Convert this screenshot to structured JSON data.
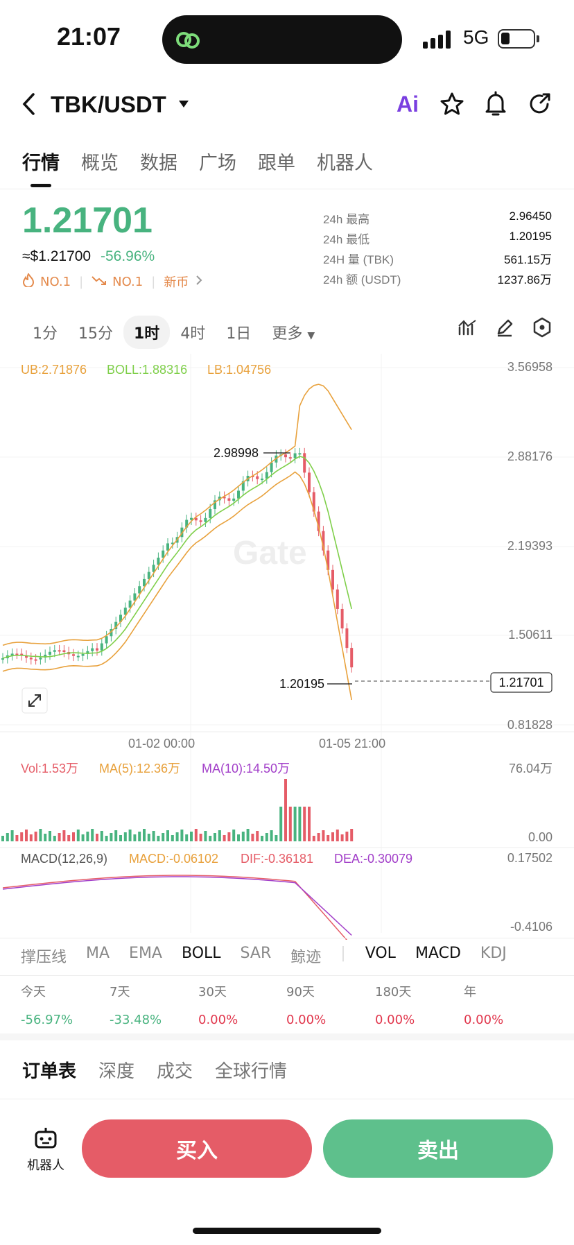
{
  "status_bar": {
    "time": "21:07",
    "network": "5G"
  },
  "header": {
    "pair": "TBK/USDT",
    "ai_label": "Ai"
  },
  "tabs": [
    {
      "label": "行情"
    },
    {
      "label": "概览"
    },
    {
      "label": "数据"
    },
    {
      "label": "广场"
    },
    {
      "label": "跟单"
    },
    {
      "label": "机器人"
    }
  ],
  "price": {
    "last": "1.21701",
    "usd": "≈$1.21700",
    "change": "-56.96%",
    "badge1": "NO.1",
    "badge2": "NO.1",
    "badge3": "新币"
  },
  "stats": [
    {
      "label": "24h  最高",
      "value": "2.96450"
    },
    {
      "label": "24h  最低",
      "value": "1.20195"
    },
    {
      "label": "24H  量 (TBK)",
      "value": "561.15万"
    },
    {
      "label": "24h  额 (USDT)",
      "value": "1237.86万"
    }
  ],
  "intervals": [
    "1分",
    "15分",
    "1时",
    "4时",
    "1日",
    "更多"
  ],
  "chart_labels": {
    "ub": "UB:2.71876",
    "boll": "BOLL:1.88316",
    "lb": "LB:1.04756",
    "y_ticks": [
      "3.56958",
      "2.88176",
      "2.19393",
      "1.50611",
      "0.81828"
    ],
    "high_mark": "2.98998",
    "low_mark": "1.20195",
    "last_price": "1.21701",
    "x_ticks": [
      "01-02 00:00",
      "01-05 21:00"
    ],
    "vol": "Vol:1.53万",
    "ma5": "MA(5):12.36万",
    "ma10": "MA(10):14.50万",
    "vol_max": "76.04万",
    "vol_min": "0.00",
    "macd_title": "MACD(12,26,9)",
    "macd": "MACD:-0.06102",
    "dif": "DIF:-0.36181",
    "dea": "DEA:-0.30079",
    "macd_max": "0.17502",
    "macd_min": "-0.4106",
    "watermark": "Gate"
  },
  "colors": {
    "up": "#48b37f",
    "down": "#e55c67",
    "ub": "#e8a13c",
    "boll": "#7fcf4a",
    "lb": "#e8a13c",
    "ma10": "#a23fc9"
  },
  "indicators": [
    "撑压线",
    "MA",
    "EMA",
    "BOLL",
    "SAR",
    "鲸迹",
    "VOL",
    "MACD",
    "KDJ"
  ],
  "performance": [
    {
      "label": "今天",
      "value": "-56.97%"
    },
    {
      "label": "7天",
      "value": "-33.48%"
    },
    {
      "label": "30天",
      "value": "0.00%"
    },
    {
      "label": "90天",
      "value": "0.00%"
    },
    {
      "label": "180天",
      "value": "0.00%"
    },
    {
      "label": "年",
      "value": "0.00%"
    }
  ],
  "book_tabs": [
    "订单表",
    "深度",
    "成交",
    "全球行情"
  ],
  "bottom": {
    "bot_label": "机器人",
    "buy": "买入",
    "sell": "卖出"
  }
}
